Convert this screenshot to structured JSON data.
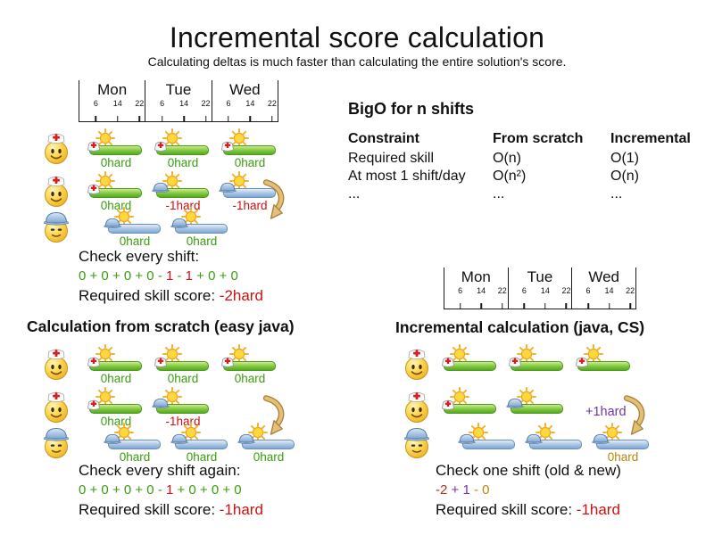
{
  "title": "Incremental score calculation",
  "subtitle": "Calculating deltas is much faster than calculating the entire solution's score.",
  "timeline": {
    "days": [
      "Mon",
      "Tue",
      "Wed"
    ],
    "hours": [
      "6",
      "14",
      "22"
    ]
  },
  "bigo": {
    "heading": "BigO for n shifts",
    "columns": [
      "Constraint",
      "From scratch",
      "Incremental"
    ],
    "rows": [
      [
        "Required skill",
        "O(n)",
        "O(1)"
      ],
      [
        "At most 1 shift/day",
        "O(n²)",
        "O(n)"
      ],
      [
        "...",
        "...",
        "..."
      ]
    ]
  },
  "colors": {
    "green": "#3a9e0e",
    "red": "#cc1111",
    "brick": "#b03226",
    "purple": "#70389e",
    "gold": "#b8860b"
  },
  "sections": {
    "initial": {
      "check_label": "Check every shift:",
      "sum": [
        {
          "t": "0 + 0 + 0 + 0 - ",
          "c": "green"
        },
        {
          "t": "1",
          "c": "red"
        },
        {
          "t": " - ",
          "c": "green"
        },
        {
          "t": "1",
          "c": "red"
        },
        {
          "t": " + 0 + 0",
          "c": "green"
        }
      ],
      "score_label": "Required skill score: ",
      "score_value": "-2hard"
    },
    "scratch": {
      "heading": "Calculation from scratch (easy java)",
      "check_label": "Check every shift again:",
      "sum": [
        {
          "t": "0 + 0 + 0 + 0 - ",
          "c": "green"
        },
        {
          "t": "1",
          "c": "red"
        },
        {
          "t": " + 0 + 0 + 0",
          "c": "green"
        }
      ],
      "score_label": "Required skill score: ",
      "score_value": "-1hard"
    },
    "incremental": {
      "heading": "Incremental calculation (java, CS)",
      "check_label": "Check one shift (old & new)",
      "sum": [
        {
          "t": "-2",
          "c": "brick"
        },
        {
          "t": " + 1",
          "c": "purple"
        },
        {
          "t": " - 0",
          "c": "gold"
        }
      ],
      "score_label": "Required skill score: ",
      "score_value": "-1hard",
      "delta_label": "+1hard"
    }
  },
  "diagrams": [
    {
      "id": "initial",
      "faces": [
        "nurse",
        "nurse",
        "builder"
      ],
      "shifts": [
        {
          "row": 0,
          "col": 0,
          "bar": "green",
          "hat": "nurse",
          "label": "0hard",
          "lc": "green"
        },
        {
          "row": 0,
          "col": 1,
          "bar": "green",
          "hat": "nurse",
          "label": "0hard",
          "lc": "green"
        },
        {
          "row": 0,
          "col": 2,
          "bar": "green",
          "hat": "nurse",
          "label": "0hard",
          "lc": "green"
        },
        {
          "row": 1,
          "col": 0,
          "bar": "green",
          "hat": "nurse",
          "label": "0hard",
          "lc": "green"
        },
        {
          "row": 1,
          "col": 1,
          "bar": "green",
          "hat": "helmet",
          "label": "-1hard",
          "lc": "red"
        },
        {
          "row": 1,
          "col": 2,
          "bar": "blue",
          "hat": "helmet",
          "label": "-1hard",
          "lc": "red"
        },
        {
          "row": 2,
          "col": 0,
          "offset": true,
          "bar": "blue",
          "hat": "helmet",
          "label": "0hard",
          "lc": "green"
        },
        {
          "row": 2,
          "col": 1,
          "offset": true,
          "bar": "blue",
          "hat": "helmet",
          "label": "0hard",
          "lc": "green"
        }
      ],
      "arrow": true,
      "note": null
    },
    {
      "id": "scratch",
      "faces": [
        "nurse",
        "nurse",
        "builder"
      ],
      "shifts": [
        {
          "row": 0,
          "col": 0,
          "bar": "green",
          "hat": "nurse",
          "label": "0hard",
          "lc": "green"
        },
        {
          "row": 0,
          "col": 1,
          "bar": "green",
          "hat": "nurse",
          "label": "0hard",
          "lc": "green"
        },
        {
          "row": 0,
          "col": 2,
          "bar": "green",
          "hat": "nurse",
          "label": "0hard",
          "lc": "green"
        },
        {
          "row": 1,
          "col": 0,
          "bar": "green",
          "hat": "nurse",
          "label": "0hard",
          "lc": "green"
        },
        {
          "row": 1,
          "col": 1,
          "bar": "green",
          "hat": "helmet",
          "label": "-1hard",
          "lc": "red"
        },
        {
          "row": 2,
          "col": 0,
          "offset": true,
          "bar": "blue",
          "hat": "helmet",
          "label": "0hard",
          "lc": "green"
        },
        {
          "row": 2,
          "col": 1,
          "offset": true,
          "bar": "blue",
          "hat": "helmet",
          "label": "0hard",
          "lc": "green"
        },
        {
          "row": 2,
          "col": 2,
          "offset": true,
          "bar": "blue",
          "hat": "helmet",
          "label": "0hard",
          "lc": "green"
        }
      ],
      "arrow": true,
      "note": null
    },
    {
      "id": "incremental",
      "faces": [
        "nurse",
        "nurse",
        "builder"
      ],
      "shifts": [
        {
          "row": 0,
          "col": 0,
          "bar": "green",
          "hat": "nurse",
          "label": "",
          "lc": "green"
        },
        {
          "row": 0,
          "col": 1,
          "bar": "green",
          "hat": "nurse",
          "label": "",
          "lc": "green"
        },
        {
          "row": 0,
          "col": 2,
          "bar": "green",
          "hat": "nurse",
          "label": "",
          "lc": "green"
        },
        {
          "row": 1,
          "col": 0,
          "bar": "green",
          "hat": "nurse",
          "label": "",
          "lc": "green"
        },
        {
          "row": 1,
          "col": 1,
          "bar": "green",
          "hat": "helmet",
          "label": "",
          "lc": "green"
        },
        {
          "row": 2,
          "col": 0,
          "offset": true,
          "bar": "blue",
          "hat": "helmet",
          "label": "",
          "lc": "green"
        },
        {
          "row": 2,
          "col": 1,
          "offset": true,
          "bar": "blue",
          "hat": "helmet",
          "label": "",
          "lc": "green"
        },
        {
          "row": 2,
          "col": 2,
          "offset": true,
          "bar": "blue",
          "hat": "helmet",
          "label": "0hard",
          "lc": "gold"
        }
      ],
      "arrow": true,
      "note": "delta"
    }
  ]
}
